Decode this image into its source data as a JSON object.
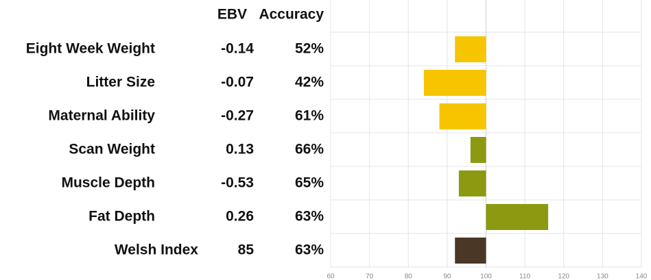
{
  "chart_data": {
    "type": "bar",
    "headers": [
      "EBV",
      "Accuracy"
    ],
    "categories": [
      "Eight Week Weight",
      "Litter Size",
      "Maternal Ability",
      "Scan Weight",
      "Muscle Depth",
      "Fat Depth",
      "Welsh Index"
    ],
    "ebv": [
      -0.14,
      -0.07,
      -0.27,
      0.13,
      -0.53,
      0.26,
      85
    ],
    "accuracy": [
      "52%",
      "42%",
      "61%",
      "66%",
      "65%",
      "63%",
      "63%"
    ],
    "values": [
      92,
      84,
      88,
      96,
      93,
      116,
      92
    ],
    "colors": [
      "#f6c500",
      "#f6c500",
      "#f6c500",
      "#8b9a11",
      "#8b9a11",
      "#8b9a11",
      "#4a3726"
    ],
    "base": 100,
    "xlim": [
      60,
      140
    ],
    "xticks": [
      60,
      70,
      80,
      90,
      100,
      110,
      120,
      130,
      140
    ],
    "grid": true
  }
}
